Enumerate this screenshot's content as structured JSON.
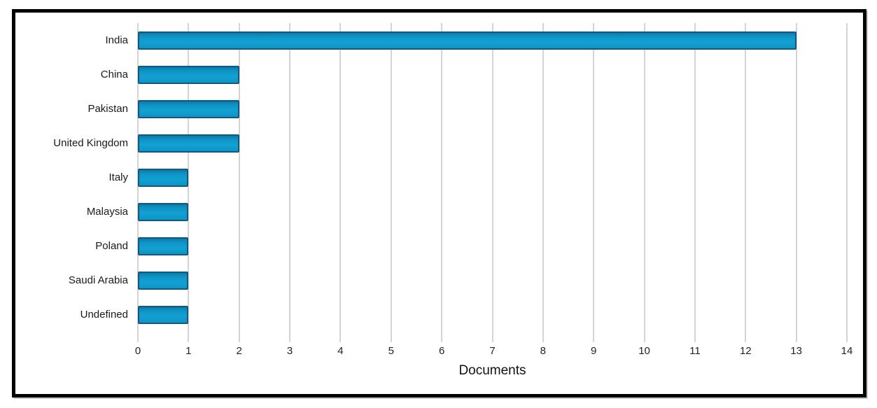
{
  "chart_data": {
    "type": "bar",
    "orientation": "horizontal",
    "categories": [
      "India",
      "China",
      "Pakistan",
      "United Kingdom",
      "Italy",
      "Malaysia",
      "Poland",
      "Saudi Arabia",
      "Undefined"
    ],
    "values": [
      13,
      2,
      2,
      2,
      1,
      1,
      1,
      1,
      1
    ],
    "title": "",
    "xlabel": "Documents",
    "ylabel": "",
    "xlim": [
      0,
      14
    ],
    "xticks": [
      "0",
      "1",
      "2",
      "3",
      "4",
      "5",
      "6",
      "7",
      "8",
      "9",
      "10",
      "11",
      "12",
      "13",
      "14"
    ],
    "grid": true,
    "legend": "none",
    "colors": {
      "bar_fill": "#0d95c5",
      "bar_fill_top": "#087aab",
      "bar_border": "#16577f",
      "gridline": "#d4d4d4",
      "frame_border": "#000000",
      "background": "#ffffff",
      "text": "#1a1a1a"
    }
  }
}
